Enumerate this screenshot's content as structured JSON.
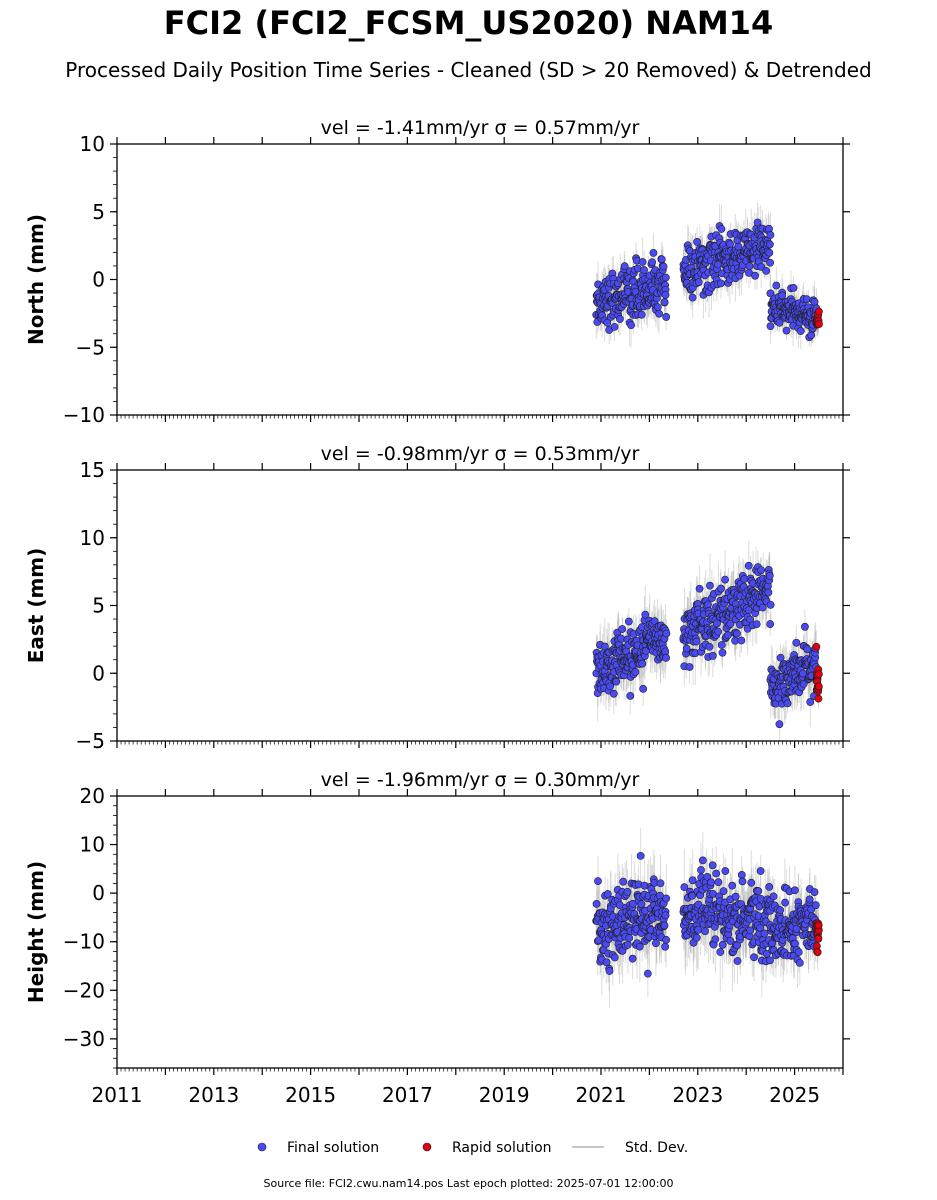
{
  "header": {
    "title": "FCI2 (FCI2_FCSM_US2020) NAM14",
    "subtitle": "Processed Daily Position Time Series - Cleaned (SD > 20 Removed) & Detrended"
  },
  "footer": {
    "source": "Source file: FCI2.cwu.nam14.pos  Last epoch plotted: 2025-07-01 12:00:00"
  },
  "legend": {
    "placement": "bottom-center",
    "items": [
      {
        "label": "Final solution",
        "color": "#4a4af5"
      },
      {
        "label": "Rapid solution",
        "color": "#e0000f"
      },
      {
        "label": "Std. Dev.",
        "color": "#c8c8c8"
      }
    ]
  },
  "colors": {
    "final": "#4a4af5",
    "rapid": "#e0000f",
    "std": "#9a9a9a",
    "outline": "#202020"
  },
  "chart_data": [
    {
      "type": "scatter",
      "title": "vel = -1.41mm/yr   σ = 0.57mm/yr",
      "ylabel": "North (mm)",
      "xlim": [
        2011,
        2026
      ],
      "ylim": [
        -10,
        10
      ],
      "yticks": [
        -10,
        -5,
        0,
        5,
        10
      ],
      "xticks": [
        2011,
        2013,
        2015,
        2017,
        2019,
        2021,
        2023,
        2025
      ],
      "grid": false,
      "segments": [
        {
          "series": "Final solution",
          "start": 2020.9,
          "end": 2022.35,
          "mean_start": -1.6,
          "mean_end": -0.4,
          "spread": 1.3,
          "count": 210,
          "sd": 1.2
        },
        {
          "series": "Final solution",
          "start": 2022.7,
          "end": 2024.5,
          "mean_start": 0.5,
          "mean_end": 2.5,
          "spread": 1.3,
          "count": 240,
          "sd": 1.3
        },
        {
          "series": "Final solution",
          "start": 2024.5,
          "end": 2025.45,
          "mean_start": -2.0,
          "mean_end": -3.0,
          "spread": 0.9,
          "count": 140,
          "sd": 1.0
        },
        {
          "series": "Rapid solution",
          "start": 2025.45,
          "end": 2025.5,
          "mean_start": -2.8,
          "mean_end": -2.8,
          "spread": 0.5,
          "count": 18,
          "sd": 0.6
        }
      ]
    },
    {
      "type": "scatter",
      "title": "vel = -0.98mm/yr   σ = 0.53mm/yr",
      "ylabel": "East (mm)",
      "xlim": [
        2011,
        2026
      ],
      "ylim": [
        -5,
        15
      ],
      "yticks": [
        -5,
        0,
        5,
        10,
        15
      ],
      "xticks": [
        2011,
        2013,
        2015,
        2017,
        2019,
        2021,
        2023,
        2025
      ],
      "grid": false,
      "segments": [
        {
          "series": "Final solution",
          "start": 2020.9,
          "end": 2022.35,
          "mean_start": 0.2,
          "mean_end": 2.8,
          "spread": 1.5,
          "count": 210,
          "sd": 1.5
        },
        {
          "series": "Final solution",
          "start": 2022.7,
          "end": 2024.5,
          "mean_start": 3.0,
          "mean_end": 6.0,
          "spread": 1.5,
          "count": 240,
          "sd": 1.6
        },
        {
          "series": "Final solution",
          "start": 2024.5,
          "end": 2025.45,
          "mean_start": -0.8,
          "mean_end": 0.6,
          "spread": 1.3,
          "count": 140,
          "sd": 1.3
        },
        {
          "series": "Rapid solution",
          "start": 2025.45,
          "end": 2025.5,
          "mean_start": -0.3,
          "mean_end": -0.3,
          "spread": 0.9,
          "count": 18,
          "sd": 0.8
        }
      ]
    },
    {
      "type": "scatter",
      "title": "vel = -1.96mm/yr   σ = 0.30mm/yr",
      "ylabel": "Height (mm)",
      "xlim": [
        2011,
        2026
      ],
      "ylim": [
        -36,
        20
      ],
      "yticks": [
        -30,
        -20,
        -10,
        0,
        10,
        20
      ],
      "xticks": [
        2011,
        2013,
        2015,
        2017,
        2019,
        2021,
        2023,
        2025
      ],
      "grid": false,
      "segments": [
        {
          "series": "Final solution",
          "start": 2020.9,
          "end": 2022.35,
          "mean_start": -7.0,
          "mean_end": -4.0,
          "spread": 5.0,
          "count": 210,
          "sd": 5.0
        },
        {
          "series": "Final solution",
          "start": 2022.7,
          "end": 2024.5,
          "mean_start": -4.0,
          "mean_end": -6.0,
          "spread": 5.5,
          "count": 240,
          "sd": 5.5
        },
        {
          "series": "Final solution",
          "start": 2024.5,
          "end": 2025.45,
          "mean_start": -8.0,
          "mean_end": -6.0,
          "spread": 4.0,
          "count": 140,
          "sd": 4.5
        },
        {
          "series": "Rapid solution",
          "start": 2025.45,
          "end": 2025.5,
          "mean_start": -8.0,
          "mean_end": -8.0,
          "spread": 3.0,
          "count": 18,
          "sd": 3.0
        }
      ]
    }
  ]
}
